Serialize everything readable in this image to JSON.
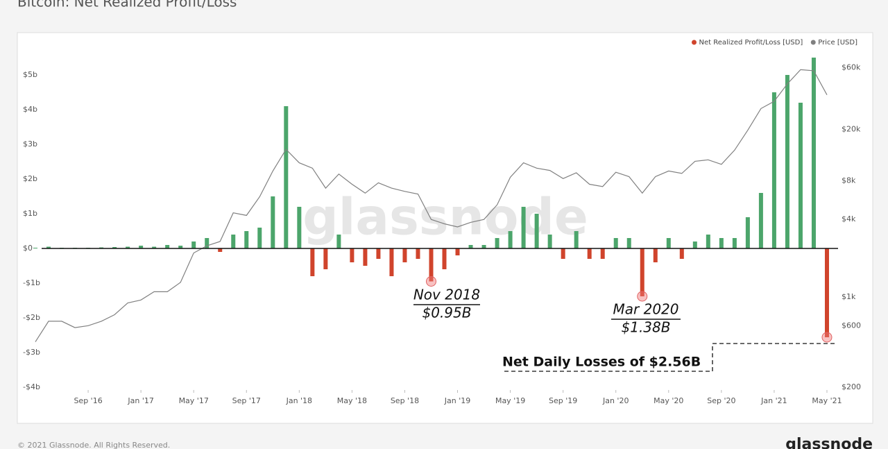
{
  "chart_data": {
    "type": "bar",
    "title": "Bitcoin: Net Realized Profit/Loss",
    "watermark": "glassnode",
    "footer": "© 2021 Glassnode. All Rights Reserved.",
    "logo": "glassnode",
    "legend": "upper right",
    "grid": false,
    "x": [
      "2016-05",
      "2016-06",
      "2016-07",
      "2016-08",
      "2016-09",
      "2016-10",
      "2016-11",
      "2016-12",
      "2017-01",
      "2017-02",
      "2017-03",
      "2017-04",
      "2017-05",
      "2017-06",
      "2017-07",
      "2017-08",
      "2017-09",
      "2017-10",
      "2017-11",
      "2017-12",
      "2018-01",
      "2018-02",
      "2018-03",
      "2018-04",
      "2018-05",
      "2018-06",
      "2018-07",
      "2018-08",
      "2018-09",
      "2018-10",
      "2018-11",
      "2018-12",
      "2019-01",
      "2019-02",
      "2019-03",
      "2019-04",
      "2019-05",
      "2019-06",
      "2019-07",
      "2019-08",
      "2019-09",
      "2019-10",
      "2019-11",
      "2019-12",
      "2020-01",
      "2020-02",
      "2020-03",
      "2020-04",
      "2020-05",
      "2020-06",
      "2020-07",
      "2020-08",
      "2020-09",
      "2020-10",
      "2020-11",
      "2020-12",
      "2021-01",
      "2021-02",
      "2021-03",
      "2021-04",
      "2021-05"
    ],
    "xlim": [
      "2016-05",
      "2021-06"
    ],
    "xticks": [
      {
        "value": "2016-09",
        "label": "Sep '16"
      },
      {
        "value": "2017-01",
        "label": "Jan '17"
      },
      {
        "value": "2017-05",
        "label": "May '17"
      },
      {
        "value": "2017-09",
        "label": "Sep '17"
      },
      {
        "value": "2018-01",
        "label": "Jan '18"
      },
      {
        "value": "2018-05",
        "label": "May '18"
      },
      {
        "value": "2018-09",
        "label": "Sep '18"
      },
      {
        "value": "2019-01",
        "label": "Jan '19"
      },
      {
        "value": "2019-05",
        "label": "May '19"
      },
      {
        "value": "2019-09",
        "label": "Sep '19"
      },
      {
        "value": "2020-01",
        "label": "Jan '20"
      },
      {
        "value": "2020-05",
        "label": "May '20"
      },
      {
        "value": "2020-09",
        "label": "Sep '20"
      },
      {
        "value": "2021-01",
        "label": "Jan '21"
      },
      {
        "value": "2021-05",
        "label": "May '21"
      }
    ],
    "ylim": [
      -4,
      5.5
    ],
    "yticks": [
      {
        "value": -4,
        "label": "-$4b"
      },
      {
        "value": -3,
        "label": "-$3b"
      },
      {
        "value": -2,
        "label": "-$2b"
      },
      {
        "value": -1,
        "label": "-$1b"
      },
      {
        "value": 0,
        "label": "$0"
      },
      {
        "value": 1,
        "label": "$1b"
      },
      {
        "value": 2,
        "label": "$2b"
      },
      {
        "value": 3,
        "label": "$3b"
      },
      {
        "value": 4,
        "label": "$4b"
      },
      {
        "value": 5,
        "label": "$5b"
      }
    ],
    "y2lim": [
      200,
      72000
    ],
    "y2scale": "log",
    "y2ticks": [
      {
        "value": 200,
        "label": "$200"
      },
      {
        "value": 600,
        "label": "$600"
      },
      {
        "value": 1000,
        "label": "$1k"
      },
      {
        "value": 4000,
        "label": "$4k"
      },
      {
        "value": 8000,
        "label": "$8k"
      },
      {
        "value": 20000,
        "label": "$20k"
      },
      {
        "value": 60000,
        "label": "$60k"
      }
    ],
    "series": [
      {
        "name": "Net Realized Profit/Loss [USD]",
        "color": "#d0442c",
        "positive_color": "#4ca56b",
        "axis": "y",
        "values": [
          0.02,
          0.05,
          0.02,
          0.02,
          0.02,
          0.03,
          0.04,
          0.05,
          0.08,
          0.05,
          0.1,
          0.08,
          0.2,
          0.3,
          -0.1,
          0.4,
          0.5,
          0.6,
          1.5,
          4.1,
          1.2,
          -0.8,
          -0.6,
          0.4,
          -0.4,
          -0.5,
          -0.3,
          -0.8,
          -0.4,
          -0.3,
          -0.95,
          -0.6,
          -0.2,
          0.1,
          0.1,
          0.3,
          0.5,
          1.2,
          1.0,
          0.4,
          -0.3,
          0.5,
          -0.3,
          -0.3,
          0.3,
          0.3,
          -1.38,
          -0.4,
          0.3,
          -0.3,
          0.2,
          0.4,
          0.3,
          0.3,
          0.9,
          1.6,
          4.5,
          5.0,
          4.2,
          5.5,
          -2.56
        ]
      },
      {
        "name": "Price [USD]",
        "color": "#808080",
        "axis": "y2",
        "values": [
          450,
          650,
          650,
          580,
          600,
          650,
          730,
          900,
          950,
          1100,
          1100,
          1300,
          2200,
          2500,
          2700,
          4500,
          4300,
          6000,
          9500,
          14000,
          11000,
          10000,
          7000,
          9000,
          7500,
          6400,
          7700,
          7000,
          6600,
          6300,
          4000,
          3700,
          3500,
          3800,
          4000,
          5200,
          8500,
          11000,
          10000,
          9600,
          8300,
          9200,
          7500,
          7200,
          9300,
          8600,
          6400,
          8600,
          9500,
          9100,
          11300,
          11600,
          10700,
          13800,
          19700,
          29000,
          33000,
          45000,
          58000,
          57000,
          37000
        ]
      }
    ],
    "annotations": [
      {
        "title": "Nov 2018",
        "text": "$0.95B"
      },
      {
        "title": "Mar 2020",
        "text": "$1.38B"
      },
      {
        "text": "Net Daily Losses of $2.56B"
      }
    ]
  }
}
